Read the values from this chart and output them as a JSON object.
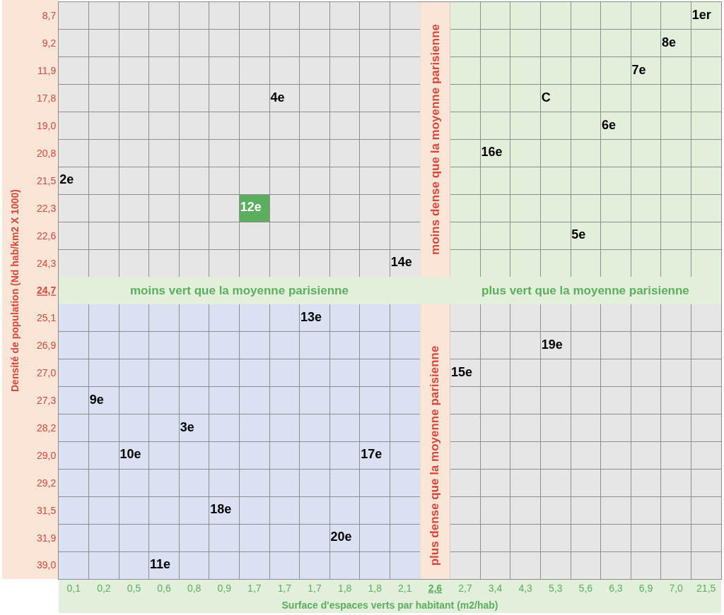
{
  "chart_data": {
    "type": "heatmap",
    "xlabel": "Surface d'espaces verts par habitant (m2/hab)",
    "ylabel": "Densité de population (Nd hab/km2 X 1000)",
    "categories": [
      "0,1",
      "0,2",
      "0,5",
      "0,6",
      "0,8",
      "0,9",
      "1,7",
      "1,7",
      "1,7",
      "1,8",
      "1,8",
      "2,1",
      "2,6",
      "2,7",
      "3,4",
      "4,3",
      "5,3",
      "5,6",
      "6,3",
      "6,9",
      "7,0",
      "21,5"
    ],
    "y_categories": [
      "8,7",
      "9,2",
      "11,9",
      "17,8",
      "19,0",
      "20,8",
      "21,5",
      "22,3",
      "22,6",
      "24,3",
      "24,7",
      "25,1",
      "26,9",
      "27,0",
      "27,3",
      "28,2",
      "29,0",
      "29,2",
      "31,5",
      "31,9",
      "39,0"
    ],
    "cells": [
      [
        null,
        null,
        null,
        null,
        null,
        null,
        null,
        null,
        null,
        null,
        null,
        null,
        null,
        null,
        null,
        null,
        null,
        null,
        null,
        null,
        null,
        1
      ],
      [
        null,
        null,
        null,
        null,
        null,
        null,
        null,
        null,
        null,
        null,
        null,
        null,
        null,
        null,
        null,
        null,
        null,
        null,
        null,
        null,
        8,
        null
      ],
      [
        null,
        null,
        null,
        null,
        null,
        null,
        null,
        null,
        null,
        null,
        null,
        null,
        null,
        null,
        null,
        null,
        null,
        null,
        null,
        7,
        null,
        null
      ],
      [
        null,
        null,
        null,
        null,
        null,
        null,
        null,
        4,
        null,
        null,
        null,
        null,
        null,
        null,
        null,
        null,
        null,
        null,
        null,
        null,
        null,
        null
      ],
      [
        null,
        null,
        null,
        null,
        null,
        null,
        null,
        null,
        null,
        null,
        null,
        null,
        null,
        null,
        null,
        null,
        null,
        null,
        6,
        null,
        null,
        null
      ],
      [
        null,
        null,
        null,
        null,
        null,
        null,
        null,
        null,
        null,
        null,
        null,
        null,
        null,
        null,
        16,
        null,
        null,
        null,
        null,
        null,
        null,
        null
      ],
      [
        2,
        null,
        null,
        null,
        null,
        null,
        null,
        null,
        null,
        null,
        null,
        null,
        null,
        null,
        null,
        null,
        null,
        null,
        null,
        null,
        null,
        null
      ],
      [
        null,
        null,
        null,
        null,
        null,
        null,
        12,
        null,
        null,
        null,
        null,
        null,
        null,
        null,
        null,
        null,
        null,
        null,
        null,
        null,
        null,
        null
      ],
      [
        null,
        null,
        null,
        null,
        null,
        null,
        null,
        null,
        null,
        null,
        null,
        null,
        null,
        null,
        null,
        null,
        null,
        5,
        null,
        null,
        null,
        null
      ],
      [
        null,
        null,
        null,
        null,
        null,
        null,
        null,
        null,
        null,
        null,
        null,
        14,
        null,
        null,
        null,
        null,
        null,
        null,
        null,
        null,
        null,
        null
      ],
      [
        null,
        null,
        null,
        null,
        null,
        null,
        null,
        null,
        null,
        null,
        null,
        null,
        null,
        null,
        null,
        null,
        null,
        null,
        null,
        null,
        null,
        null
      ],
      [
        null,
        null,
        null,
        null,
        null,
        null,
        null,
        null,
        13,
        null,
        null,
        null,
        null,
        null,
        null,
        null,
        null,
        null,
        null,
        null,
        null,
        null
      ],
      [
        null,
        null,
        null,
        null,
        null,
        null,
        null,
        null,
        null,
        null,
        null,
        null,
        null,
        null,
        null,
        null,
        19,
        null,
        null,
        null,
        null,
        null
      ],
      [
        null,
        null,
        null,
        null,
        null,
        null,
        null,
        null,
        null,
        null,
        null,
        null,
        null,
        15,
        null,
        null,
        null,
        null,
        null,
        null,
        null,
        null
      ],
      [
        null,
        9,
        null,
        null,
        null,
        null,
        null,
        null,
        null,
        null,
        null,
        null,
        null,
        null,
        null,
        null,
        null,
        null,
        null,
        null,
        null,
        null
      ],
      [
        null,
        null,
        null,
        null,
        3,
        null,
        null,
        null,
        null,
        null,
        null,
        null,
        null,
        null,
        null,
        null,
        null,
        null,
        null,
        null,
        null,
        null
      ],
      [
        null,
        null,
        10,
        null,
        null,
        null,
        null,
        null,
        null,
        null,
        17,
        null,
        null,
        null,
        null,
        null,
        null,
        null,
        null,
        null,
        null,
        null
      ],
      [
        null,
        null,
        null,
        null,
        null,
        null,
        null,
        null,
        null,
        null,
        null,
        null,
        null,
        null,
        null,
        null,
        null,
        null,
        null,
        null,
        null,
        null
      ],
      [
        null,
        null,
        null,
        null,
        null,
        18,
        null,
        null,
        null,
        null,
        null,
        null,
        null,
        null,
        null,
        null,
        null,
        null,
        null,
        null,
        null,
        null
      ],
      [
        null,
        null,
        null,
        null,
        null,
        null,
        null,
        null,
        null,
        20,
        null,
        null,
        null,
        null,
        null,
        null,
        null,
        null,
        null,
        null,
        null,
        null
      ],
      [
        null,
        null,
        null,
        11,
        null,
        null,
        null,
        null,
        null,
        null,
        null,
        null,
        null,
        null,
        null,
        null,
        null,
        null,
        null,
        null,
        null,
        null
      ]
    ],
    "cell_labels": [
      [
        null,
        null,
        null,
        null,
        null,
        null,
        null,
        null,
        null,
        null,
        null,
        null,
        null,
        null,
        null,
        null,
        null,
        null,
        null,
        null,
        null,
        "1er"
      ],
      [
        null,
        null,
        null,
        null,
        null,
        null,
        null,
        null,
        null,
        null,
        null,
        null,
        null,
        null,
        null,
        null,
        null,
        null,
        null,
        null,
        "8e",
        null
      ],
      [
        null,
        null,
        null,
        null,
        null,
        null,
        null,
        null,
        null,
        null,
        null,
        null,
        null,
        null,
        null,
        null,
        null,
        null,
        null,
        "7e",
        null,
        null
      ],
      [
        null,
        null,
        null,
        null,
        null,
        null,
        null,
        "4e",
        null,
        null,
        null,
        null,
        null,
        null,
        null,
        null,
        "C",
        null,
        null,
        null,
        null,
        null
      ],
      [
        null,
        null,
        null,
        null,
        null,
        null,
        null,
        null,
        null,
        null,
        null,
        null,
        null,
        null,
        null,
        null,
        null,
        null,
        "6e",
        null,
        null,
        null
      ],
      [
        null,
        null,
        null,
        null,
        null,
        null,
        null,
        null,
        null,
        null,
        null,
        null,
        null,
        null,
        "16e",
        null,
        null,
        null,
        null,
        null,
        null,
        null
      ],
      [
        "2e",
        null,
        null,
        null,
        null,
        null,
        null,
        null,
        null,
        null,
        null,
        null,
        null,
        null,
        null,
        null,
        null,
        null,
        null,
        null,
        null,
        null
      ],
      [
        null,
        null,
        null,
        null,
        null,
        null,
        "12e",
        null,
        null,
        null,
        null,
        null,
        null,
        null,
        null,
        null,
        null,
        null,
        null,
        null,
        null,
        null
      ],
      [
        null,
        null,
        null,
        null,
        null,
        null,
        null,
        null,
        null,
        null,
        null,
        null,
        null,
        null,
        null,
        null,
        null,
        "5e",
        null,
        null,
        null,
        null
      ],
      [
        null,
        null,
        null,
        null,
        null,
        null,
        null,
        null,
        null,
        null,
        null,
        "14e",
        null,
        null,
        null,
        null,
        null,
        null,
        null,
        null,
        null,
        null
      ],
      [
        null,
        null,
        null,
        null,
        null,
        null,
        null,
        null,
        null,
        null,
        null,
        null,
        null,
        null,
        null,
        null,
        null,
        null,
        null,
        null,
        null,
        null
      ],
      [
        null,
        null,
        null,
        null,
        null,
        null,
        null,
        null,
        "13e",
        null,
        null,
        null,
        null,
        null,
        null,
        null,
        null,
        null,
        null,
        null,
        null,
        null
      ],
      [
        null,
        null,
        null,
        null,
        null,
        null,
        null,
        null,
        null,
        null,
        null,
        null,
        null,
        null,
        null,
        null,
        "19e",
        null,
        null,
        null,
        null,
        null
      ],
      [
        null,
        null,
        null,
        null,
        null,
        null,
        null,
        null,
        null,
        null,
        null,
        null,
        null,
        "15e",
        null,
        null,
        null,
        null,
        null,
        null,
        null,
        null
      ],
      [
        null,
        "9e",
        null,
        null,
        null,
        null,
        null,
        null,
        null,
        null,
        null,
        null,
        null,
        null,
        null,
        null,
        null,
        null,
        null,
        null,
        null,
        null
      ],
      [
        null,
        null,
        null,
        null,
        "3e",
        null,
        null,
        null,
        null,
        null,
        null,
        null,
        null,
        null,
        null,
        null,
        null,
        null,
        null,
        null,
        null,
        null
      ],
      [
        null,
        null,
        "10e",
        null,
        null,
        null,
        null,
        null,
        null,
        null,
        "17e",
        null,
        null,
        null,
        null,
        null,
        null,
        null,
        null,
        null,
        null,
        null
      ],
      [
        null,
        null,
        null,
        null,
        null,
        null,
        null,
        null,
        null,
        null,
        null,
        null,
        null,
        null,
        null,
        null,
        null,
        null,
        null,
        null,
        null,
        null
      ],
      [
        null,
        null,
        null,
        null,
        null,
        "18e",
        null,
        null,
        null,
        null,
        null,
        null,
        null,
        null,
        null,
        null,
        null,
        null,
        null,
        null,
        null,
        null
      ],
      [
        null,
        null,
        null,
        null,
        null,
        null,
        null,
        null,
        null,
        "20e",
        null,
        null,
        null,
        null,
        null,
        null,
        null,
        null,
        null,
        null,
        null,
        null
      ],
      [
        null,
        null,
        null,
        "11e",
        null,
        null,
        null,
        null,
        null,
        null,
        null,
        null,
        null,
        null,
        null,
        null,
        null,
        null,
        null,
        null,
        null,
        null
      ]
    ],
    "colors": [
      [
        "#e7e6e6",
        "#e7e6e6",
        "#e7e6e6",
        "#e7e6e6",
        "#e7e6e6",
        "#e7e6e6",
        "#e7e6e6",
        "#e7e6e6",
        "#e7e6e6",
        "#e7e6e6",
        "#e7e6e6",
        "#e7e6e6",
        null,
        "#e2efda",
        "#e2efda",
        "#e2efda",
        "#e2efda",
        "#e2efda",
        "#e2efda",
        "#e2efda",
        "#e2efda",
        "#e2efda"
      ],
      [
        "#e7e6e6",
        "#e7e6e6",
        "#e7e6e6",
        "#e7e6e6",
        "#e7e6e6",
        "#e7e6e6",
        "#e7e6e6",
        "#e7e6e6",
        "#e7e6e6",
        "#e7e6e6",
        "#e7e6e6",
        "#e7e6e6",
        null,
        "#e2efda",
        "#e2efda",
        "#e2efda",
        "#e2efda",
        "#e2efda",
        "#e2efda",
        "#e2efda",
        "#e2efda",
        "#e2efda"
      ],
      [
        "#e7e6e6",
        "#e7e6e6",
        "#e7e6e6",
        "#e7e6e6",
        "#e7e6e6",
        "#e7e6e6",
        "#e7e6e6",
        "#e7e6e6",
        "#e7e6e6",
        "#e7e6e6",
        "#e7e6e6",
        "#e7e6e6",
        null,
        "#e2efda",
        "#e2efda",
        "#e2efda",
        "#e2efda",
        "#e2efda",
        "#e2efda",
        "#e2efda",
        "#e2efda",
        "#e2efda"
      ],
      [
        "#e7e6e6",
        "#e7e6e6",
        "#e7e6e6",
        "#e7e6e6",
        "#e7e6e6",
        "#e7e6e6",
        "#e7e6e6",
        "#e7e6e6",
        "#e7e6e6",
        "#e7e6e6",
        "#e7e6e6",
        "#e7e6e6",
        null,
        "#e2efda",
        "#e2efda",
        "#e2efda",
        "#e2efda",
        "#e2efda",
        "#e2efda",
        "#e2efda",
        "#e2efda",
        "#e2efda"
      ],
      [
        "#e7e6e6",
        "#e7e6e6",
        "#e7e6e6",
        "#e7e6e6",
        "#e7e6e6",
        "#e7e6e6",
        "#e7e6e6",
        "#e7e6e6",
        "#e7e6e6",
        "#e7e6e6",
        "#e7e6e6",
        "#e7e6e6",
        null,
        "#e2efda",
        "#e2efda",
        "#e2efda",
        "#e2efda",
        "#e2efda",
        "#e2efda",
        "#e2efda",
        "#e2efda",
        "#e2efda"
      ],
      [
        "#e7e6e6",
        "#e7e6e6",
        "#e7e6e6",
        "#e7e6e6",
        "#e7e6e6",
        "#e7e6e6",
        "#e7e6e6",
        "#e7e6e6",
        "#e7e6e6",
        "#e7e6e6",
        "#e7e6e6",
        "#e7e6e6",
        null,
        "#e2efda",
        "#e2efda",
        "#e2efda",
        "#e2efda",
        "#e2efda",
        "#e2efda",
        "#e2efda",
        "#e2efda",
        "#e2efda"
      ],
      [
        "#e7e6e6",
        "#e7e6e6",
        "#e7e6e6",
        "#e7e6e6",
        "#e7e6e6",
        "#e7e6e6",
        "#e7e6e6",
        "#e7e6e6",
        "#e7e6e6",
        "#e7e6e6",
        "#e7e6e6",
        "#e7e6e6",
        null,
        "#e2efda",
        "#e2efda",
        "#e2efda",
        "#e2efda",
        "#e2efda",
        "#e2efda",
        "#e2efda",
        "#e2efda",
        "#e2efda"
      ],
      [
        "#e7e6e6",
        "#e7e6e6",
        "#e7e6e6",
        "#e7e6e6",
        "#e7e6e6",
        "#e7e6e6",
        "#5aae5e",
        "#e7e6e6",
        "#e7e6e6",
        "#e7e6e6",
        "#e7e6e6",
        "#e7e6e6",
        null,
        "#e2efda",
        "#e2efda",
        "#e2efda",
        "#e2efda",
        "#e2efda",
        "#e2efda",
        "#e2efda",
        "#e2efda",
        "#e2efda"
      ],
      [
        "#e7e6e6",
        "#e7e6e6",
        "#e7e6e6",
        "#e7e6e6",
        "#e7e6e6",
        "#e7e6e6",
        "#e7e6e6",
        "#e7e6e6",
        "#e7e6e6",
        "#e7e6e6",
        "#e7e6e6",
        "#e7e6e6",
        null,
        "#e2efda",
        "#e2efda",
        "#e2efda",
        "#e2efda",
        "#e2efda",
        "#e2efda",
        "#e2efda",
        "#e2efda",
        "#e2efda"
      ],
      [
        "#e7e6e6",
        "#e7e6e6",
        "#e7e6e6",
        "#e7e6e6",
        "#e7e6e6",
        "#e7e6e6",
        "#e7e6e6",
        "#e7e6e6",
        "#e7e6e6",
        "#e7e6e6",
        "#e7e6e6",
        "#e7e6e6",
        null,
        "#e2efda",
        "#e2efda",
        "#e2efda",
        "#e2efda",
        "#e2efda",
        "#e2efda",
        "#e2efda",
        "#e2efda",
        "#e2efda"
      ],
      [
        null,
        null,
        null,
        null,
        null,
        null,
        null,
        null,
        null,
        null,
        null,
        null,
        null,
        null,
        null,
        null,
        null,
        null,
        null,
        null,
        null,
        null
      ],
      [
        "#d9e1f2",
        "#d9e1f2",
        "#d9e1f2",
        "#d9e1f2",
        "#d9e1f2",
        "#d9e1f2",
        "#d9e1f2",
        "#d9e1f2",
        "#d9e1f2",
        "#d9e1f2",
        "#d9e1f2",
        "#d9e1f2",
        null,
        "#e7e6e6",
        "#e7e6e6",
        "#e7e6e6",
        "#e7e6e6",
        "#e7e6e6",
        "#e7e6e6",
        "#e7e6e6",
        "#e7e6e6",
        "#e7e6e6"
      ],
      [
        "#d9e1f2",
        "#d9e1f2",
        "#d9e1f2",
        "#d9e1f2",
        "#d9e1f2",
        "#d9e1f2",
        "#d9e1f2",
        "#d9e1f2",
        "#d9e1f2",
        "#d9e1f2",
        "#d9e1f2",
        "#d9e1f2",
        null,
        "#e7e6e6",
        "#e7e6e6",
        "#e7e6e6",
        "#e7e6e6",
        "#e7e6e6",
        "#e7e6e6",
        "#e7e6e6",
        "#e7e6e6",
        "#e7e6e6"
      ],
      [
        "#d9e1f2",
        "#d9e1f2",
        "#d9e1f2",
        "#d9e1f2",
        "#d9e1f2",
        "#d9e1f2",
        "#d9e1f2",
        "#d9e1f2",
        "#d9e1f2",
        "#d9e1f2",
        "#d9e1f2",
        "#d9e1f2",
        null,
        "#e7e6e6",
        "#e7e6e6",
        "#e7e6e6",
        "#e7e6e6",
        "#e7e6e6",
        "#e7e6e6",
        "#e7e6e6",
        "#e7e6e6",
        "#e7e6e6"
      ],
      [
        "#d9e1f2",
        "#d9e1f2",
        "#d9e1f2",
        "#d9e1f2",
        "#d9e1f2",
        "#d9e1f2",
        "#d9e1f2",
        "#d9e1f2",
        "#d9e1f2",
        "#d9e1f2",
        "#d9e1f2",
        "#d9e1f2",
        null,
        "#e7e6e6",
        "#e7e6e6",
        "#e7e6e6",
        "#e7e6e6",
        "#e7e6e6",
        "#e7e6e6",
        "#e7e6e6",
        "#e7e6e6",
        "#e7e6e6"
      ],
      [
        "#d9e1f2",
        "#d9e1f2",
        "#d9e1f2",
        "#d9e1f2",
        "#d9e1f2",
        "#d9e1f2",
        "#d9e1f2",
        "#d9e1f2",
        "#d9e1f2",
        "#d9e1f2",
        "#d9e1f2",
        "#d9e1f2",
        null,
        "#e7e6e6",
        "#e7e6e6",
        "#e7e6e6",
        "#e7e6e6",
        "#e7e6e6",
        "#e7e6e6",
        "#e7e6e6",
        "#e7e6e6",
        "#e7e6e6"
      ],
      [
        "#d9e1f2",
        "#d9e1f2",
        "#d9e1f2",
        "#d9e1f2",
        "#d9e1f2",
        "#d9e1f2",
        "#d9e1f2",
        "#d9e1f2",
        "#d9e1f2",
        "#d9e1f2",
        "#d9e1f2",
        "#d9e1f2",
        null,
        "#e7e6e6",
        "#e7e6e6",
        "#e7e6e6",
        "#e7e6e6",
        "#e7e6e6",
        "#e7e6e6",
        "#e7e6e6",
        "#e7e6e6",
        "#e7e6e6"
      ],
      [
        "#d9e1f2",
        "#d9e1f2",
        "#d9e1f2",
        "#d9e1f2",
        "#d9e1f2",
        "#d9e1f2",
        "#d9e1f2",
        "#d9e1f2",
        "#d9e1f2",
        "#d9e1f2",
        "#d9e1f2",
        "#d9e1f2",
        null,
        "#e7e6e6",
        "#e7e6e6",
        "#e7e6e6",
        "#e7e6e6",
        "#e7e6e6",
        "#e7e6e6",
        "#e7e6e6",
        "#e7e6e6",
        "#e7e6e6"
      ],
      [
        "#d9e1f2",
        "#d9e1f2",
        "#d9e1f2",
        "#d9e1f2",
        "#d9e1f2",
        "#d9e1f2",
        "#d9e1f2",
        "#d9e1f2",
        "#d9e1f2",
        "#d9e1f2",
        "#d9e1f2",
        "#d9e1f2",
        null,
        "#e7e6e6",
        "#e7e6e6",
        "#e7e6e6",
        "#e7e6e6",
        "#e7e6e6",
        "#e7e6e6",
        "#e7e6e6",
        "#e7e6e6",
        "#e7e6e6"
      ],
      [
        "#d9e1f2",
        "#d9e1f2",
        "#d9e1f2",
        "#d9e1f2",
        "#d9e1f2",
        "#d9e1f2",
        "#d9e1f2",
        "#d9e1f2",
        "#d9e1f2",
        "#d9e1f2",
        "#d9e1f2",
        "#d9e1f2",
        null,
        "#e7e6e6",
        "#e7e6e6",
        "#e7e6e6",
        "#e7e6e6",
        "#e7e6e6",
        "#e7e6e6",
        "#e7e6e6",
        "#e7e6e6",
        "#e7e6e6"
      ],
      [
        "#d9e1f2",
        "#d9e1f2",
        "#d9e1f2",
        "#d9e1f2",
        "#d9e1f2",
        "#d9e1f2",
        "#d9e1f2",
        "#d9e1f2",
        "#d9e1f2",
        "#d9e1f2",
        "#d9e1f2",
        "#d9e1f2",
        null,
        "#e7e6e6",
        "#e7e6e6",
        "#e7e6e6",
        "#e7e6e6",
        "#e7e6e6",
        "#e7e6e6",
        "#e7e6e6",
        "#e7e6e6",
        "#e7e6e6"
      ]
    ],
    "annotations": [
      {
        "text": "plus vert que la moyenne parisienne",
        "x": "5,6",
        "y": "24,7"
      },
      {
        "text": "plus dense que la moyenne parisienne",
        "x": "2,6",
        "y": "29,0"
      }
    ],
    "ref_lines": [
      {
        "axis": "y",
        "value": "24,7",
        "label": "moins vert que la moyenne parisienne",
        "color": "#e2efda"
      },
      {
        "axis": "x",
        "value": "2,6",
        "label": "moins dense que la moyenne parisienne",
        "color": "#fbe5d6"
      }
    ],
    "grid": true
  }
}
